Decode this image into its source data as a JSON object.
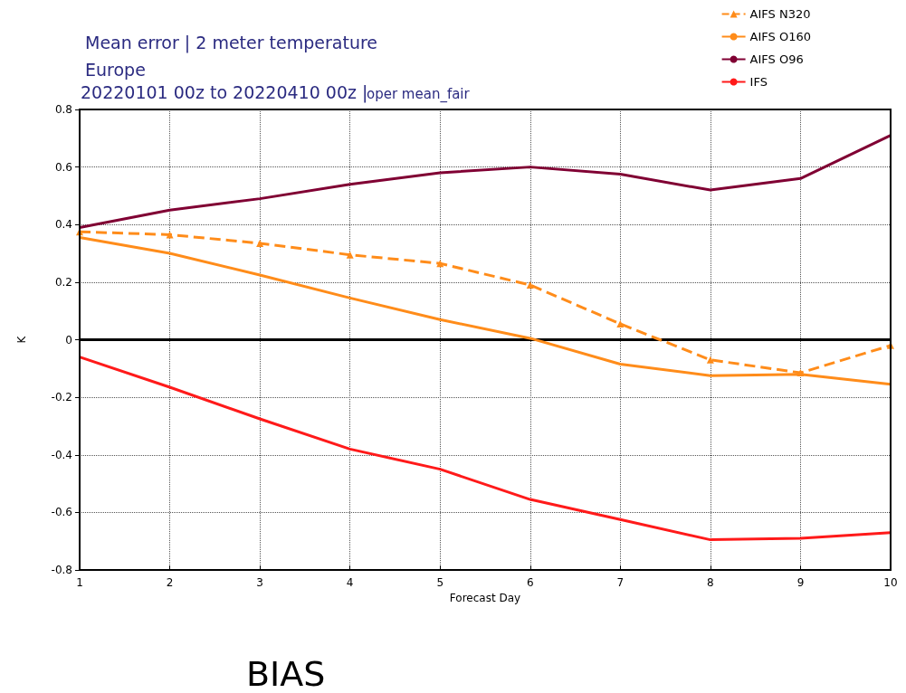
{
  "chart_data": {
    "type": "line",
    "title": "Mean error | 2 meter temperature",
    "subtitle": "Europe",
    "annotations": [
      "20220101 00z to 20220410 00z |",
      "oper mean_fair",
      "BIAS"
    ],
    "xlabel": "Forecast Day",
    "ylabel": "K",
    "x": [
      1,
      2,
      3,
      4,
      5,
      6,
      7,
      8,
      9,
      10
    ],
    "xlim": [
      1,
      10
    ],
    "xticks": [
      1,
      2,
      3,
      4,
      5,
      6,
      7,
      8,
      9,
      10
    ],
    "ylim": [
      -0.8,
      0.8
    ],
    "yticks": [
      -0.8,
      -0.6,
      -0.4,
      -0.2,
      0,
      0.2,
      0.4,
      0.6,
      0.8
    ],
    "grid": true,
    "legend": "top right",
    "ref_lines": [
      {
        "axis": "y",
        "value": 0,
        "color": "#000000"
      }
    ],
    "series": [
      {
        "name": "AIFS N320",
        "color": "#ff8c1a",
        "marker": "triangle",
        "line_style": "dashed",
        "values": [
          0.375,
          0.365,
          0.335,
          0.295,
          0.265,
          0.19,
          0.055,
          -0.07,
          -0.115,
          -0.02
        ]
      },
      {
        "name": "AIFS O160",
        "color": "#ff8c1a",
        "marker": "none",
        "line_style": "solid",
        "values": [
          0.355,
          0.3,
          0.225,
          0.145,
          0.07,
          0.005,
          -0.085,
          -0.125,
          -0.12,
          -0.155
        ]
      },
      {
        "name": "AIFS O96",
        "color": "#800033",
        "marker": "none",
        "line_style": "solid",
        "values": [
          0.39,
          0.45,
          0.49,
          0.54,
          0.58,
          0.6,
          0.575,
          0.52,
          0.56,
          0.71
        ]
      },
      {
        "name": "IFS",
        "color": "#ff1a1a",
        "marker": "none",
        "line_style": "solid",
        "values": [
          -0.06,
          -0.165,
          -0.275,
          -0.38,
          -0.45,
          -0.555,
          -0.625,
          -0.695,
          -0.69,
          -0.67
        ]
      }
    ]
  }
}
